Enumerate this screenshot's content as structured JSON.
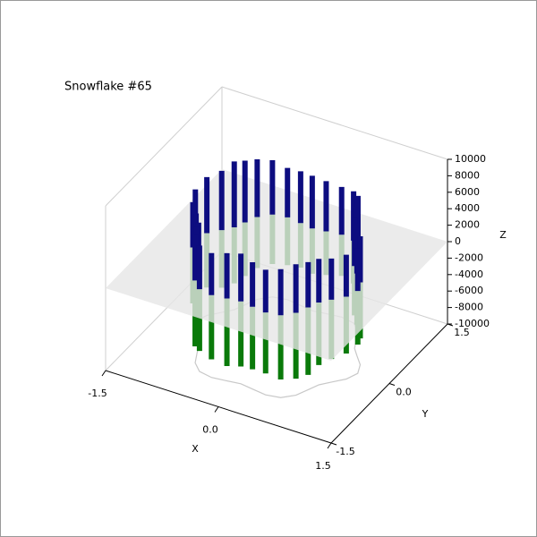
{
  "chart_data": {
    "type": "ribbon3d",
    "title": "Snowflake #65",
    "xlabel": "X",
    "ylabel": "Y",
    "zlabel": "Z",
    "xlim": [
      -1.5,
      1.5
    ],
    "ylim": [
      -1.5,
      1.5
    ],
    "zlim": [
      -10000,
      10000
    ],
    "xticks": [
      -1.5,
      {
        "value": 0,
        "label": "0.0"
      },
      1.5
    ],
    "yticks": [
      -1.5,
      {
        "value": 0,
        "label": "0.0"
      },
      1.5
    ],
    "zticks": [
      -10000,
      -8000,
      -6000,
      -4000,
      -2000,
      0,
      2000,
      4000,
      6000,
      8000,
      10000
    ],
    "plane_z": 0,
    "plane_color": "#e6e6e6",
    "outline_color": "#c8c8c8",
    "x": [
      1.08,
      1.02,
      0.9,
      0.8,
      0.74,
      0.67,
      0.54,
      0.36,
      0.17,
      0,
      -0.17,
      -0.36,
      -0.54,
      -0.67,
      -0.74,
      -0.8,
      -0.9,
      -1.02,
      -1.08,
      -1.02,
      -0.9,
      -0.8,
      -0.74,
      -0.67,
      -0.54,
      -0.36,
      -0.17,
      0,
      0.17,
      0.36,
      0.54,
      0.67,
      0.74,
      0.8,
      0.9,
      1.02
    ],
    "y": [
      0,
      0.18,
      0.33,
      0.46,
      0.62,
      0.8,
      0.94,
      0.98,
      0.95,
      0.92,
      0.95,
      0.98,
      0.94,
      0.8,
      0.62,
      0.46,
      0.33,
      0.18,
      0,
      -0.18,
      -0.33,
      -0.46,
      -0.62,
      -0.8,
      -0.94,
      -0.98,
      -0.95,
      -0.92,
      -0.95,
      -0.98,
      -0.94,
      -0.8,
      -0.62,
      -0.46,
      -0.33,
      -0.18
    ],
    "series": [
      {
        "color": "#0d0d80",
        "values": [
          5200,
          5600,
          6000,
          5800,
          6200,
          6500,
          6000,
          5800,
          6100,
          6400,
          6300,
          6000,
          6600,
          7000,
          7500,
          8000,
          7200,
          6800,
          6000,
          5500,
          5200,
          5000,
          5400,
          5600,
          5300,
          5100,
          5500,
          5800,
          5400,
          5200,
          5600,
          5900,
          5500,
          5300,
          5000,
          5100
        ]
      },
      {
        "color": "#0a7a0a",
        "values": [
          -6500,
          -6800,
          -6200,
          -6000,
          -5600,
          -5400,
          -5200,
          -5000,
          -5300,
          -5500,
          -5400,
          -5800,
          -6000,
          -6200,
          -6500,
          -6800,
          -7000,
          -6600,
          -6400,
          -6800,
          -7200,
          -7600,
          -7800,
          -8000,
          -7500,
          -7800,
          -8200,
          -7900,
          -7600,
          -7400,
          -7800,
          -8000,
          -8200,
          -7600,
          -7200,
          -6900
        ]
      }
    ]
  }
}
